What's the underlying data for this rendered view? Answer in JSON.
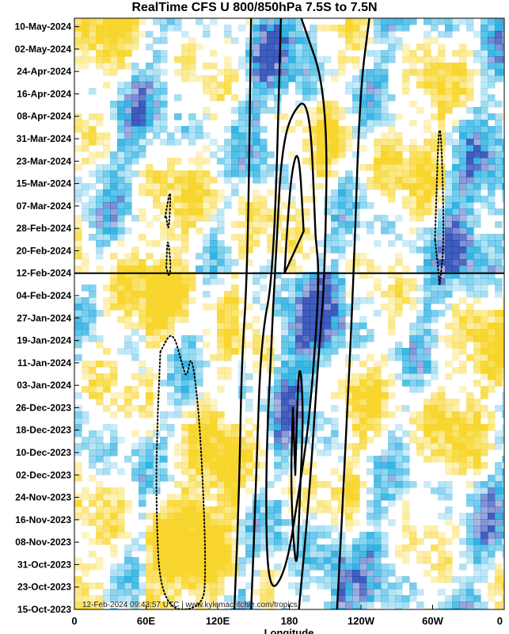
{
  "chart_data": {
    "type": "heatmap",
    "title": "RealTime CFS U 800/850hPa 7.5S to 7.5N",
    "xlabel": "Longitude",
    "ylabel": "",
    "x_ticks": [
      "0",
      "60E",
      "120E",
      "180",
      "120W",
      "60W",
      "0"
    ],
    "x_range_deg_east": [
      0,
      360
    ],
    "y_ticks": [
      "10-May-2024",
      "02-May-2024",
      "24-Apr-2024",
      "16-Apr-2024",
      "08-Apr-2024",
      "31-Mar-2024",
      "23-Mar-2024",
      "15-Mar-2024",
      "07-Mar-2024",
      "28-Feb-2024",
      "20-Feb-2024",
      "12-Feb-2024",
      "04-Feb-2024",
      "27-Jan-2024",
      "19-Jan-2024",
      "11-Jan-2024",
      "03-Jan-2024",
      "26-Dec-2023",
      "18-Dec-2023",
      "10-Dec-2023",
      "02-Dec-2023",
      "24-Nov-2023",
      "16-Nov-2023",
      "08-Nov-2023",
      "31-Oct-2023",
      "23-Oct-2023",
      "15-Oct-2023"
    ],
    "y_range": [
      "15-Oct-2023",
      "13-May-2024"
    ],
    "current_date_line": "12-Feb-2024",
    "grid": false,
    "legend": "none",
    "colors": {
      "westerly": "#f7d21a",
      "easterly": "#12a6dd",
      "strong_easterly": "#1e3fb0",
      "contour": "#000000"
    },
    "contours": [
      {
        "style": "solid",
        "points": [
          [
            148,
            "13-May-2024"
          ],
          [
            145,
            "12-Feb-2024"
          ],
          [
            140,
            "11-Jan-2024"
          ],
          [
            138,
            "26-Nov-2023"
          ],
          [
            134,
            "15-Oct-2023"
          ]
        ]
      },
      {
        "style": "solid",
        "points": [
          [
            173,
            "13-May-2024"
          ],
          [
            167,
            "12-Feb-2024"
          ],
          [
            156,
            "19-Jan-2024"
          ],
          [
            152,
            "26-Nov-2023"
          ],
          [
            148,
            "15-Oct-2023"
          ]
        ]
      },
      {
        "style": "solid",
        "points": [
          [
            247,
            "13-May-2024"
          ],
          [
            239,
            "16-Apr-2024"
          ],
          [
            234,
            "12-Feb-2024"
          ],
          [
            228,
            "19-Dec-2023"
          ],
          [
            220,
            "15-Oct-2023"
          ]
        ]
      },
      {
        "style": "solid",
        "points": [
          [
            190,
            "13-May-2024"
          ],
          [
            212,
            "16-Apr-2024"
          ],
          [
            210,
            "12-Feb-2024"
          ],
          [
            204,
            "11-Jan-2024"
          ],
          [
            197,
            "26-Nov-2023"
          ],
          [
            188,
            "15-Oct-2023"
          ]
        ]
      },
      {
        "style": "solid_closed",
        "points": [
          [
            202,
            "25-Feb-2024"
          ],
          [
            197,
            "16-Apr-2024"
          ],
          [
            180,
            "08-Apr-2024"
          ],
          [
            173,
            "23-Mar-2024"
          ],
          [
            170,
            "28-Feb-2024"
          ],
          [
            168,
            "12-Feb-2024"
          ],
          [
            165,
            "19-Jan-2024"
          ],
          [
            160,
            "02-Dec-2023"
          ],
          [
            162,
            "20-Oct-2023"
          ],
          [
            177,
            "28-Oct-2023"
          ],
          [
            188,
            "26-Nov-2023"
          ],
          [
            196,
            "19-Dec-2023"
          ],
          [
            202,
            "19-Jan-2024"
          ],
          [
            205,
            "12-Feb-2024"
          ],
          [
            202,
            "25-Feb-2024"
          ]
        ]
      },
      {
        "style": "solid_closed",
        "points": [
          [
            192,
            "27-Feb-2024"
          ],
          [
            188,
            "28-Mar-2024"
          ],
          [
            182,
            "20-Mar-2024"
          ],
          [
            178,
            "27-Feb-2024"
          ],
          [
            176,
            "12-Feb-2024"
          ]
        ]
      },
      {
        "style": "solid_closed",
        "points": [
          [
            185,
            "02-Dec-2023"
          ],
          [
            188,
            "15-Jan-2024"
          ],
          [
            192,
            "26-Dec-2023"
          ],
          [
            189,
            "26-Nov-2023"
          ],
          [
            186,
            "24-Oct-2023"
          ],
          [
            181,
            "26-Nov-2023"
          ],
          [
            183,
            "26-Dec-2023"
          ]
        ]
      },
      {
        "style": "dotted_closed",
        "points": [
          [
            76,
            "03-Mar-2024"
          ],
          [
            81,
            "15-Mar-2024"
          ],
          [
            79,
            "26-Feb-2024"
          ],
          [
            77,
            "03-Mar-2024"
          ]
        ]
      },
      {
        "style": "dotted_closed",
        "points": [
          [
            77,
            "14-Feb-2024"
          ],
          [
            78,
            "26-Feb-2024"
          ],
          [
            81,
            "14-Feb-2024"
          ],
          [
            79,
            "11-Feb-2024"
          ]
        ]
      },
      {
        "style": "dotted_closed",
        "points": [
          [
            302,
            "24-Feb-2024"
          ],
          [
            306,
            "16-Apr-2024"
          ],
          [
            310,
            "24-Feb-2024"
          ],
          [
            306,
            "08-Feb-2024"
          ]
        ]
      },
      {
        "style": "dotted_closed",
        "points": [
          [
            72,
            "15-Jan-2024"
          ],
          [
            82,
            "23-Jan-2024"
          ],
          [
            90,
            "11-Jan-2024"
          ],
          [
            94,
            "05-Jan-2024"
          ],
          [
            98,
            "15-Jan-2024"
          ],
          [
            104,
            "26-Dec-2023"
          ],
          [
            108,
            "26-Nov-2023"
          ],
          [
            110,
            "30-Oct-2023"
          ],
          [
            108,
            "15-Oct-2023"
          ],
          [
            72,
            "15-Oct-2023"
          ],
          [
            68,
            "26-Nov-2023"
          ],
          [
            70,
            "26-Dec-2023"
          ]
        ]
      }
    ],
    "annotations": [
      "12-Feb-2024 09:43:57 UTC | www.kylemacritchie.com/tropics"
    ]
  }
}
